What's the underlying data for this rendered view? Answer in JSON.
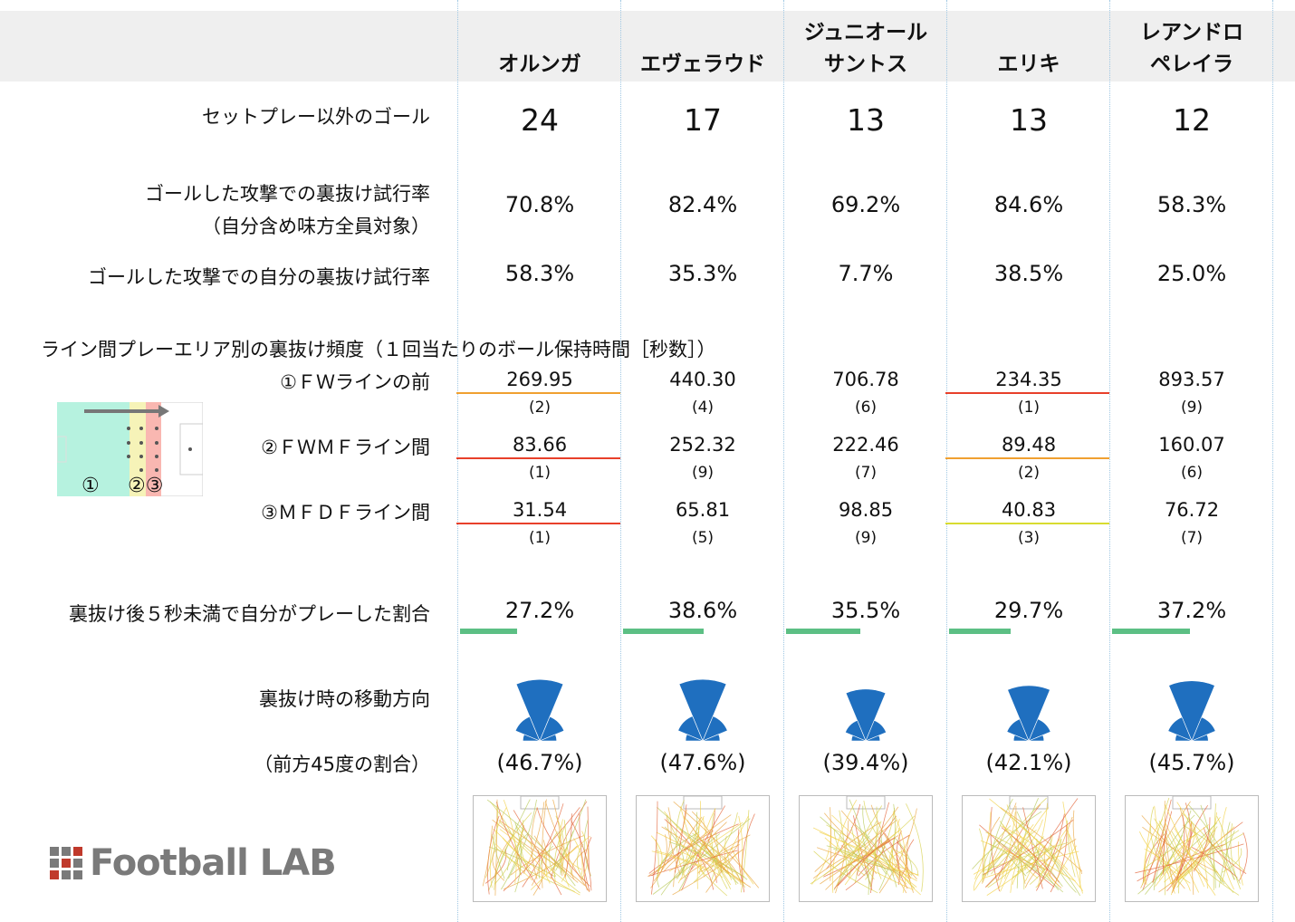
{
  "players": [
    {
      "name_lines": [
        "",
        "オルンガ"
      ],
      "goals": "24",
      "team_run_rate": "70.8%",
      "own_run_rate": "58.3%",
      "fw_front": "269.95",
      "fw_front_rank": "(2)",
      "fw_mf": "83.66",
      "fw_mf_rank": "(1)",
      "mf_df": "31.54",
      "mf_df_rank": "(1)",
      "play_within5": "27.2%",
      "play_within5_value": 27.2,
      "forward45": "(46.7%)",
      "forward45_value": 46.7,
      "fw_front_color": "#f0a030",
      "fw_mf_color": "#e8402a",
      "mf_df_color": "#e8402a"
    },
    {
      "name_lines": [
        "",
        "エヴェラウド"
      ],
      "goals": "17",
      "team_run_rate": "82.4%",
      "own_run_rate": "35.3%",
      "fw_front": "440.30",
      "fw_front_rank": "(4)",
      "fw_mf": "252.32",
      "fw_mf_rank": "(9)",
      "mf_df": "65.81",
      "mf_df_rank": "(5)",
      "play_within5": "38.6%",
      "play_within5_value": 38.6,
      "forward45": "(47.6%)",
      "forward45_value": 47.6,
      "fw_front_color": "",
      "fw_mf_color": "",
      "mf_df_color": ""
    },
    {
      "name_lines": [
        "ジュニオール",
        "サントス"
      ],
      "goals": "13",
      "team_run_rate": "69.2%",
      "own_run_rate": "7.7%",
      "fw_front": "706.78",
      "fw_front_rank": "(6)",
      "fw_mf": "222.46",
      "fw_mf_rank": "(7)",
      "mf_df": "98.85",
      "mf_df_rank": "(9)",
      "play_within5": "35.5%",
      "play_within5_value": 35.5,
      "forward45": "(39.4%)",
      "forward45_value": 39.4,
      "fw_front_color": "",
      "fw_mf_color": "",
      "mf_df_color": ""
    },
    {
      "name_lines": [
        "",
        "エリキ"
      ],
      "goals": "13",
      "team_run_rate": "84.6%",
      "own_run_rate": "38.5%",
      "fw_front": "234.35",
      "fw_front_rank": "(1)",
      "fw_mf": "89.48",
      "fw_mf_rank": "(2)",
      "mf_df": "40.83",
      "mf_df_rank": "(3)",
      "play_within5": "29.7%",
      "play_within5_value": 29.7,
      "forward45": "(42.1%)",
      "forward45_value": 42.1,
      "fw_front_color": "#e8402a",
      "fw_mf_color": "#f0a030",
      "mf_df_color": "#d8dc30"
    },
    {
      "name_lines": [
        "レアンドロ",
        "ペレイラ"
      ],
      "goals": "12",
      "team_run_rate": "58.3%",
      "own_run_rate": "25.0%",
      "fw_front": "893.57",
      "fw_front_rank": "(9)",
      "fw_mf": "160.07",
      "fw_mf_rank": "(6)",
      "mf_df": "76.72",
      "mf_df_rank": "(7)",
      "play_within5": "37.2%",
      "play_within5_value": 37.2,
      "forward45": "(45.7%)",
      "forward45_value": 45.7,
      "fw_front_color": "",
      "fw_mf_color": "",
      "mf_df_color": ""
    }
  ],
  "labels": {
    "goals": "セットプレー以外のゴール",
    "team_run_rate_1": "ゴールした攻撃での裏抜け試行率",
    "team_run_rate_2": "（自分含め味方全員対象）",
    "own_run_rate": "ゴールした攻撃での自分の裏抜け試行率",
    "section_title": "ライン間プレーエリア別の裏抜け頻度（１回当たりのボール保持時間［秒数］）",
    "fw_front": "①ＦＷラインの前",
    "fw_mf": "②ＦＷＭＦライン間",
    "mf_df": "③ＭＦＤＦライン間",
    "play_within5": "裏抜け後５秒未満で自分がプレーした割合",
    "direction": "裏抜け時の移動方向",
    "forward45": "（前方45度の割合）"
  },
  "pitch_marks": {
    "one": "①",
    "two_three": "②③"
  },
  "logo": "Football LAB",
  "colors": {
    "green_bar": "#5cbf84",
    "fan_blue": "#1f6fbf",
    "header_bg": "#efefef"
  }
}
